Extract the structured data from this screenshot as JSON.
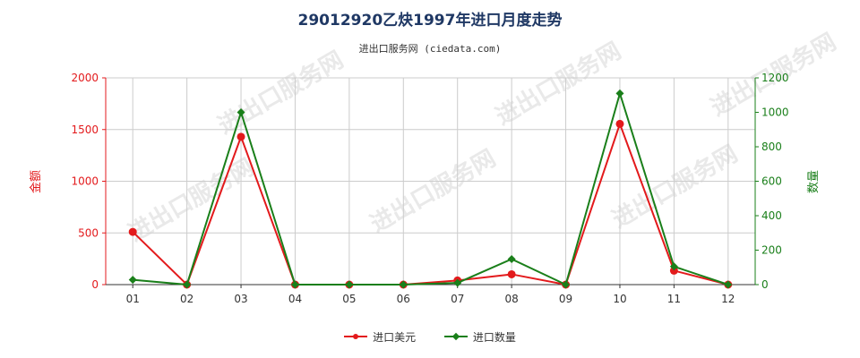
{
  "title": "29012920乙炔1997年进口月度走势",
  "subtitle": "进出口服务网 (ciedata.com)",
  "watermark": "进出口服务网",
  "colors": {
    "value": "#e31a1c",
    "quantity": "#1a7f1a",
    "grid": "#cccccc"
  },
  "chart_data": {
    "type": "line",
    "categories": [
      "01",
      "02",
      "03",
      "04",
      "05",
      "06",
      "07",
      "08",
      "09",
      "10",
      "11",
      "12"
    ],
    "y_left": {
      "label": "金额",
      "ticks": [
        "0",
        "500",
        "1000",
        "1500",
        "2000"
      ],
      "range": [
        0,
        2000
      ]
    },
    "y_right": {
      "label": "数量",
      "ticks": [
        "0",
        "200",
        "400",
        "600",
        "800",
        "1000",
        "1200"
      ],
      "range": [
        0,
        1200
      ]
    },
    "series": [
      {
        "name": "进口美元",
        "axis": "left",
        "marker": "circle",
        "values": [
          510,
          0,
          1430,
          0,
          0,
          0,
          40,
          100,
          0,
          1555,
          135,
          0
        ]
      },
      {
        "name": "进口数量",
        "axis": "right",
        "marker": "diamond",
        "values": [
          28,
          0,
          1000,
          0,
          0,
          0,
          10,
          148,
          0,
          1110,
          105,
          0
        ]
      }
    ],
    "grid": true,
    "legend_position": "bottom"
  }
}
